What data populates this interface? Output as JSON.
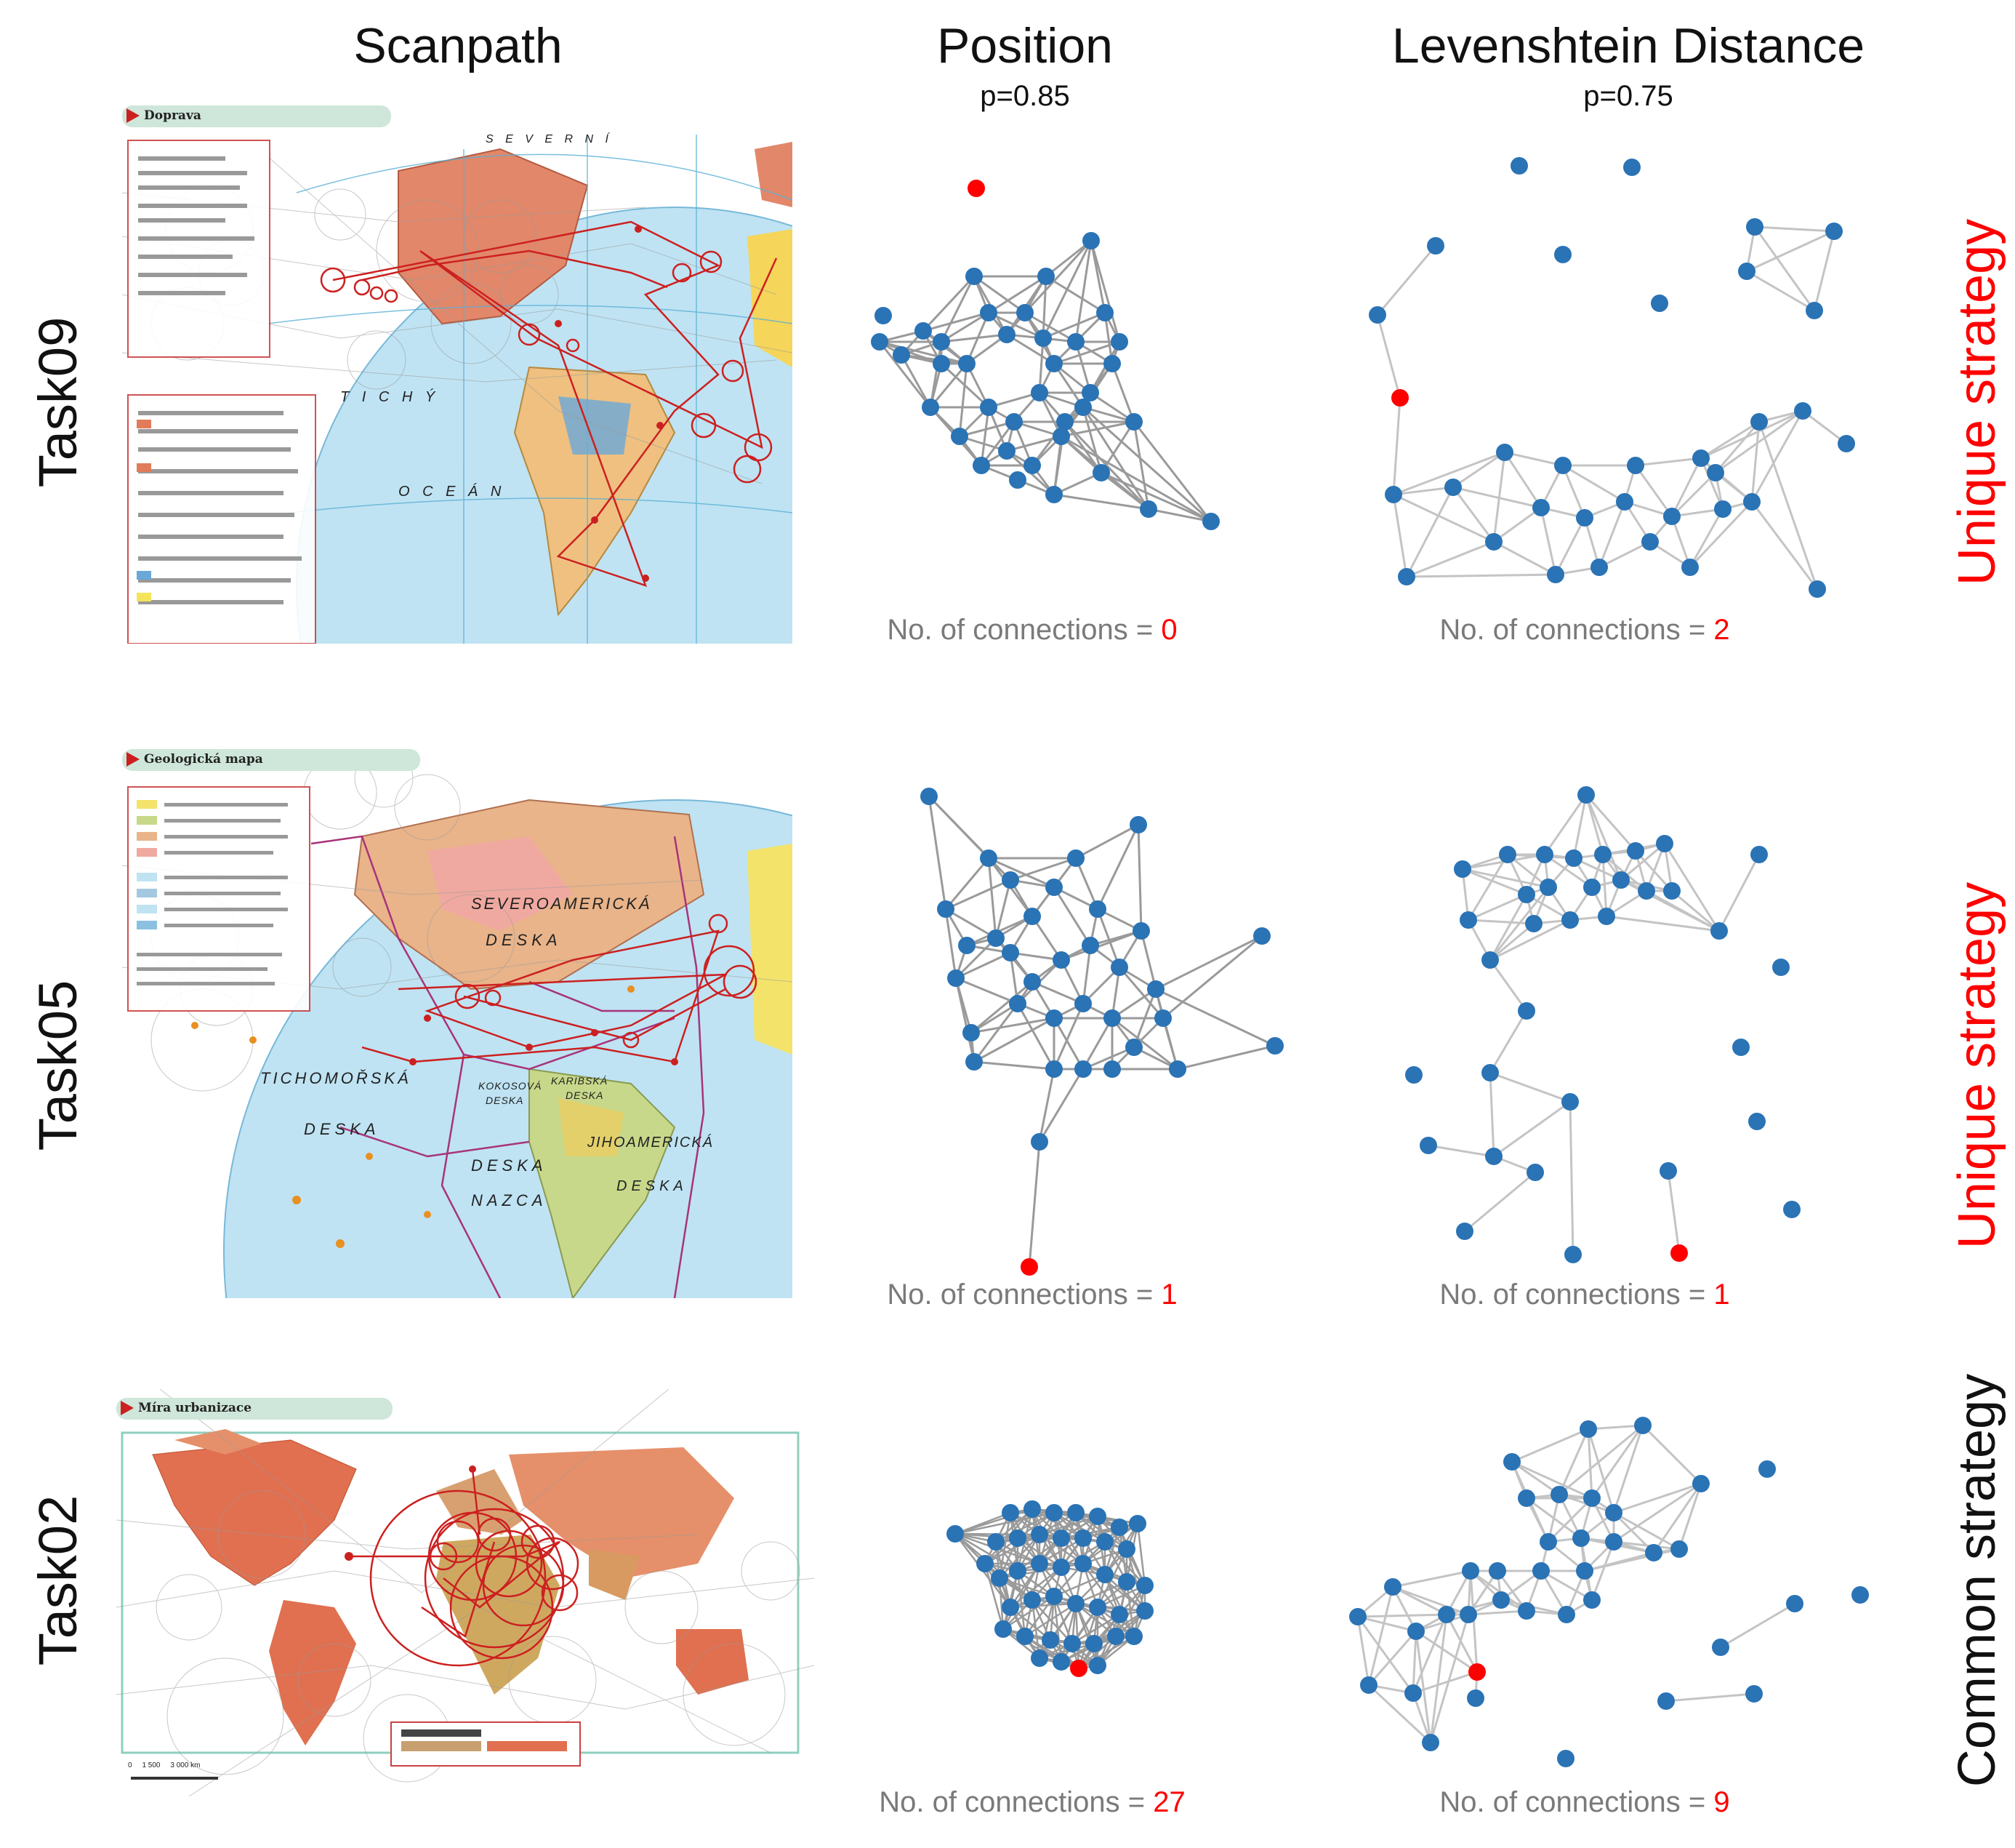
{
  "columns": {
    "scanpath": {
      "title": "Scanpath"
    },
    "position": {
      "title": "Position",
      "subtitle": "p=0.85"
    },
    "levenshtein": {
      "title": "Levenshtein Distance",
      "subtitle": "p=0.75"
    }
  },
  "connections_prefix": "No. of connections = ",
  "rows": [
    {
      "task": "Task09",
      "strategy": "Unique strategy",
      "strategy_kind": "unique",
      "map_title": "Doprava",
      "map_labels": [
        "T I C H Ý",
        "O C E Á N",
        "S E V E R N Í"
      ],
      "position_connections": "0",
      "levenshtein_connections": "2"
    },
    {
      "task": "Task05",
      "strategy": "Unique strategy",
      "strategy_kind": "unique",
      "map_title": "Geologická mapa",
      "map_labels": [
        "SEVEROAMERICKÁ",
        "DESKA",
        "TICHOMOŘSKÁ",
        "DESKA",
        "DESKA",
        "NAZCA",
        "JIHOAMERICKÁ",
        "DESKA",
        "KOKOSOVÁ",
        "DESKA",
        "KARIBSKÁ",
        "DESKA"
      ],
      "position_connections": "1",
      "levenshtein_connections": "1"
    },
    {
      "task": "Task02",
      "strategy": "Common strategy",
      "strategy_kind": "common",
      "map_title": "Míra urbanizace",
      "map_labels": [
        "0     1 500     3 000 km"
      ],
      "position_connections": "27",
      "levenshtein_connections": "9"
    }
  ],
  "colors": {
    "node": "#2a73b5",
    "highlight_node": "#ff0000",
    "edge_position": "#9a9a9a",
    "edge_levenshtein": "#c4c4c4",
    "fixation": "#cc2020",
    "unique_strategy": "#ff0000",
    "common_strategy": "#111111",
    "connections_text": "#7a7a7a"
  },
  "icons": {
    "map_title_marker": "red-triangle-icon"
  }
}
